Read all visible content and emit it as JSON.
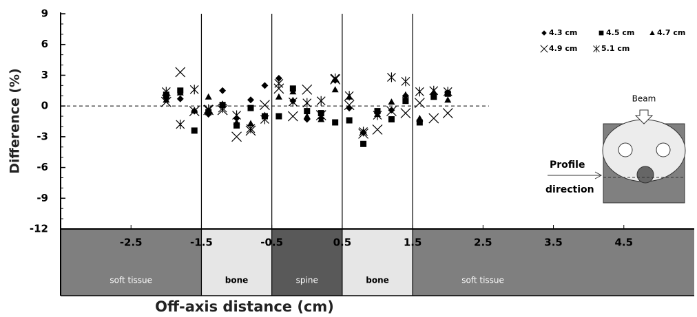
{
  "chart_data": {
    "type": "scatter",
    "y_label": "Difference (%)",
    "x_label": "Off-axis distance (cm)",
    "xlim": [
      -3.5,
      5.5
    ],
    "ylim": [
      -12,
      9
    ],
    "xticks": [
      -2.5,
      -1.5,
      -0.5,
      0.5,
      1.5,
      2.5,
      3.5,
      4.5
    ],
    "yticks": [
      9,
      6,
      3,
      0,
      -3,
      -6,
      -9,
      -12
    ],
    "legend": "top-right",
    "x": [
      -2,
      -1.8,
      -1.6,
      -1.4,
      -1.2,
      -1.0,
      -0.8,
      -0.6,
      -0.4,
      -0.2,
      0,
      0.2,
      0.4,
      0.6,
      0.8,
      1.0,
      1.2,
      1.4,
      1.6,
      1.8,
      2.0
    ],
    "series": [
      {
        "name": "4.3 cm",
        "marker": "diamond",
        "color": "#000000",
        "values": [
          0.8,
          0.7,
          -0.5,
          -0.8,
          1.5,
          -1.2,
          0.6,
          2.0,
          2.7,
          0.5,
          -1.3,
          -1.2,
          2.5,
          -0.2,
          -2.6,
          -0.7,
          -0.4,
          1.0,
          -1.5,
          1.2,
          1.3
        ]
      },
      {
        "name": "4.5 cm",
        "marker": "square",
        "color": "#000000",
        "values": [
          1.1,
          1.5,
          -2.4,
          -0.6,
          0.1,
          -1.9,
          -0.2,
          -1.0,
          -1.0,
          1.7,
          -0.5,
          -0.7,
          -1.6,
          -1.4,
          -3.7,
          -0.5,
          -1.3,
          0.5,
          -1.6,
          0.9,
          1.2
        ]
      },
      {
        "name": "4.7 cm",
        "marker": "triangle",
        "color": "#000000",
        "values": [
          0.6,
          1.3,
          -0.4,
          0.9,
          0.2,
          -1.6,
          -1.7,
          -0.9,
          0.9,
          1.4,
          -1.0,
          -1.3,
          1.6,
          0.9,
          -2.5,
          -0.8,
          0.4,
          1.1,
          -1.2,
          1.4,
          0.6
        ]
      },
      {
        "name": "4.9 cm",
        "marker": "x",
        "color": "#000000",
        "values": [
          0.4,
          3.3,
          -0.5,
          -0.4,
          -0.4,
          -3.0,
          -2.4,
          0.1,
          1.7,
          -1.0,
          1.6,
          -0.9,
          2.6,
          0.1,
          -2.7,
          -2.3,
          -0.5,
          -0.7,
          0.3,
          -1.2,
          -0.7
        ]
      },
      {
        "name": "5.1 cm",
        "marker": "asterisk",
        "color": "#000000",
        "values": [
          1.4,
          -1.8,
          1.6,
          -0.3,
          -0.2,
          -0.9,
          -2.2,
          -1.3,
          2.2,
          0.4,
          0.3,
          0.5,
          2.7,
          1.0,
          -2.5,
          -0.9,
          2.8,
          2.4,
          1.4,
          1.5,
          1.4
        ]
      }
    ],
    "regions": [
      {
        "label": "soft tissue",
        "from": -3.5,
        "to": -1.5,
        "color": "#7f7f7f"
      },
      {
        "label": "bone",
        "from": -1.5,
        "to": -0.5,
        "color": "#e6e6e6"
      },
      {
        "label": "spine",
        "from": -0.5,
        "to": 0.5,
        "color": "#595959"
      },
      {
        "label": "bone",
        "from": 0.5,
        "to": 1.5,
        "color": "#e6e6e6"
      },
      {
        "label": "soft tissue",
        "from": 1.5,
        "to": 5.5,
        "color": "#7f7f7f"
      }
    ],
    "inset": {
      "beam": "Beam",
      "profile": "Profile",
      "direction": "direction"
    }
  }
}
